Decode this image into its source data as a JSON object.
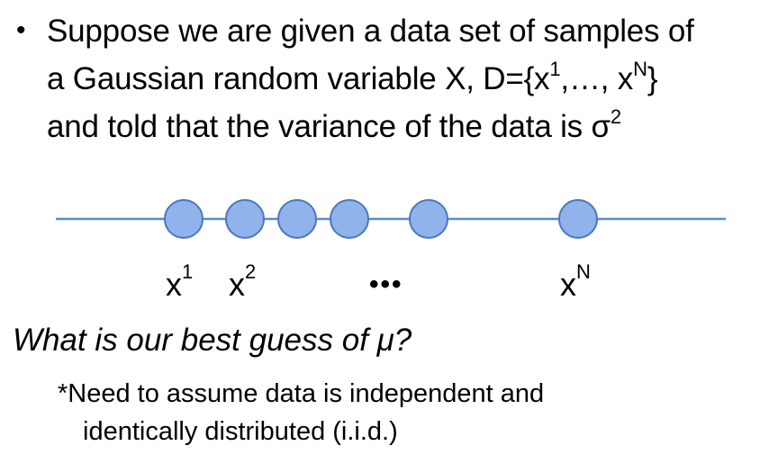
{
  "bullet": {
    "line1": "Suppose we are given a data set of samples of",
    "line2_pre": "a Gaussian random variable X, D={x",
    "line2_sup1": "1",
    "line2_mid": ",…, x",
    "line2_supN": "N",
    "line2_post": "}",
    "line3_pre": "and told that the variance of the data is σ",
    "line3_sup": "2"
  },
  "diagram": {
    "line_color": "#5b8ad0",
    "dot_fill": "#8fb3ea",
    "dot_stroke": "#4a78c0",
    "labels": {
      "x1_base": "x",
      "x1_sup": "1",
      "x2_base": "x",
      "x2_sup": "2",
      "ellipsis": "•••",
      "xN_base": "x",
      "xN_sup": "N"
    }
  },
  "question": "What is our best guess of μ?",
  "footnote": {
    "line1": "*Need to assume data is independent and",
    "line2": "identically distributed (i.i.d.)"
  }
}
